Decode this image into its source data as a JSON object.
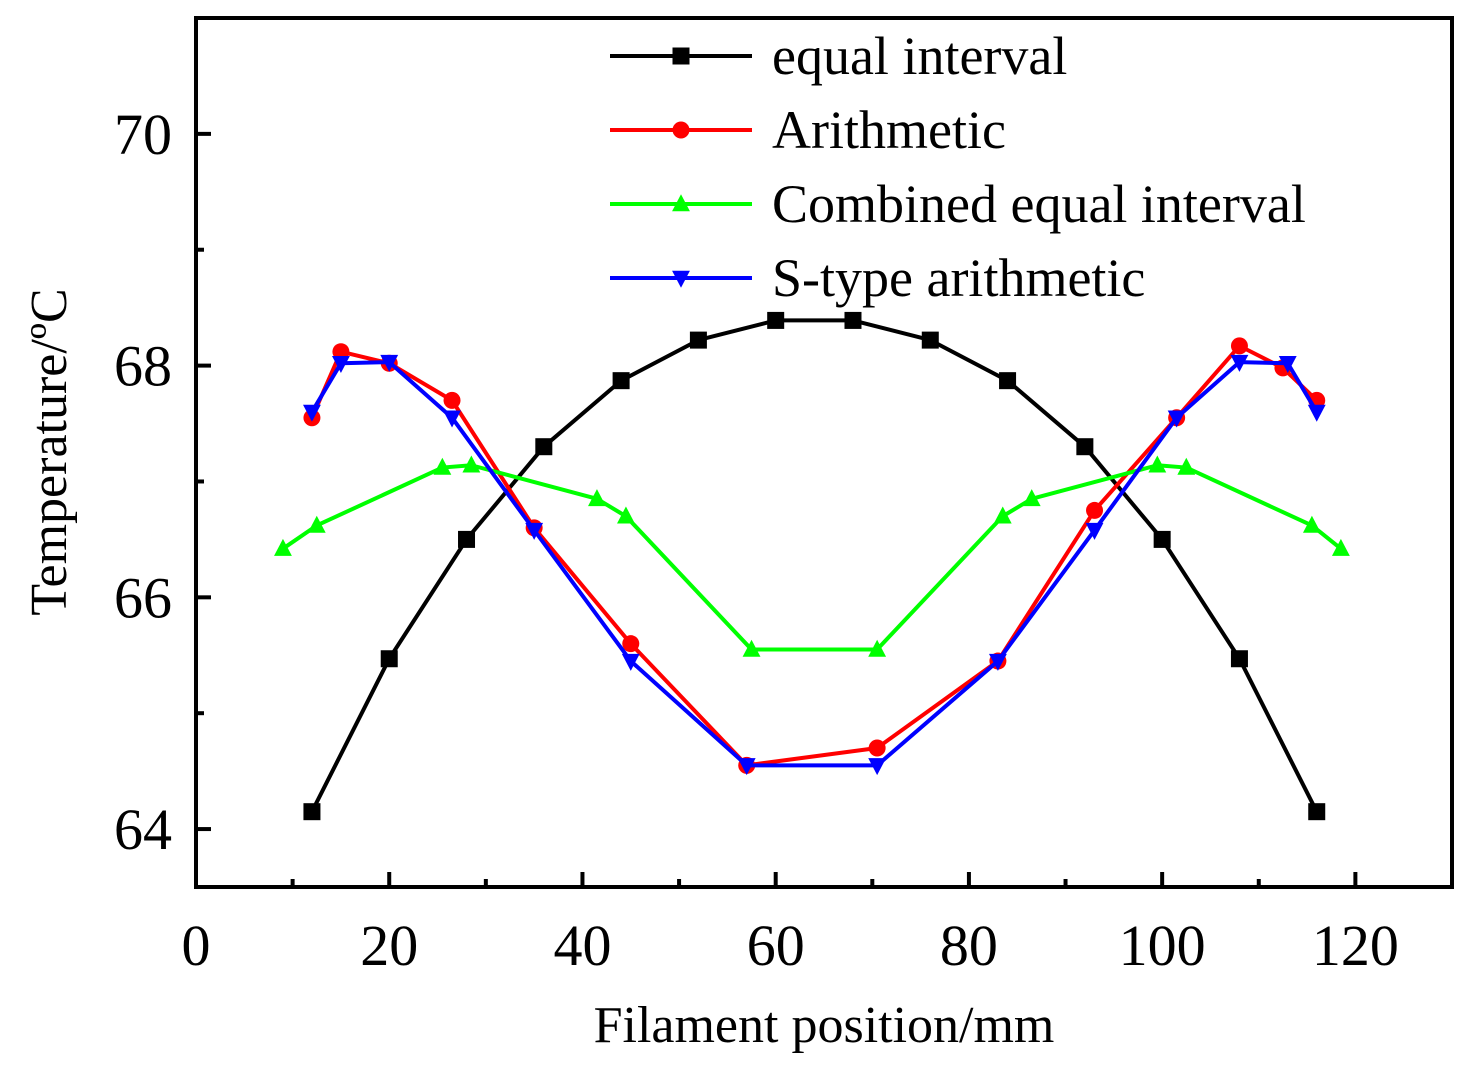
{
  "chart_data": {
    "type": "line",
    "title": "",
    "xlabel": "Filament position/mm",
    "ylabel": "Temperature/ºC",
    "xlim": [
      0,
      130
    ],
    "ylim": [
      63.5,
      71
    ],
    "xticks": [
      0,
      20,
      40,
      60,
      80,
      100,
      120
    ],
    "xtick_labels": [
      "0",
      "20",
      "40",
      "60",
      "80",
      "100",
      "120"
    ],
    "xminor": [
      10,
      30,
      50,
      70,
      90,
      110
    ],
    "yticks": [
      64,
      66,
      68,
      70
    ],
    "ytick_labels": [
      "64",
      "66",
      "68",
      "70"
    ],
    "yminor": [
      65,
      67,
      69
    ],
    "legend_position": "top-right",
    "series": [
      {
        "name": "equal interval",
        "color": "#000000",
        "marker": "square",
        "x": [
          12,
          20,
          28,
          36,
          44,
          52,
          60,
          68,
          76,
          84,
          92,
          100,
          108,
          116
        ],
        "y": [
          64.15,
          65.47,
          66.5,
          67.3,
          67.87,
          68.22,
          68.39,
          68.39,
          68.22,
          67.87,
          67.3,
          66.5,
          65.47,
          64.15
        ]
      },
      {
        "name": "Arithmetic",
        "color": "#ff0000",
        "marker": "circle",
        "x": [
          12,
          15,
          20,
          26.5,
          35,
          45,
          57,
          70.5,
          83,
          93,
          101.5,
          108,
          112.5,
          116
        ],
        "y": [
          67.55,
          68.12,
          68.02,
          67.7,
          66.6,
          65.6,
          64.55,
          64.7,
          65.45,
          66.75,
          67.55,
          68.17,
          67.98,
          67.7
        ]
      },
      {
        "name": "Combined equal interval",
        "color": "#00ff00",
        "marker": "triangle-up",
        "x": [
          9,
          12.5,
          25.5,
          28.5,
          41.5,
          44.5,
          57.5,
          70.5,
          83.5,
          86.5,
          99.5,
          102.5,
          115.5,
          118.5
        ],
        "y": [
          66.42,
          66.62,
          67.12,
          67.14,
          66.85,
          66.7,
          65.55,
          65.55,
          66.7,
          66.85,
          67.14,
          67.12,
          66.62,
          66.42
        ]
      },
      {
        "name": "S-type arithmetic",
        "color": "#0000ff",
        "marker": "triangle-down",
        "x": [
          12,
          15,
          20,
          26.5,
          35,
          45,
          57,
          70.5,
          83,
          93,
          101.5,
          108,
          113,
          116
        ],
        "y": [
          67.6,
          68.02,
          68.03,
          67.55,
          66.58,
          65.45,
          64.55,
          64.55,
          65.45,
          66.58,
          67.55,
          68.03,
          68.02,
          67.6
        ]
      }
    ]
  }
}
